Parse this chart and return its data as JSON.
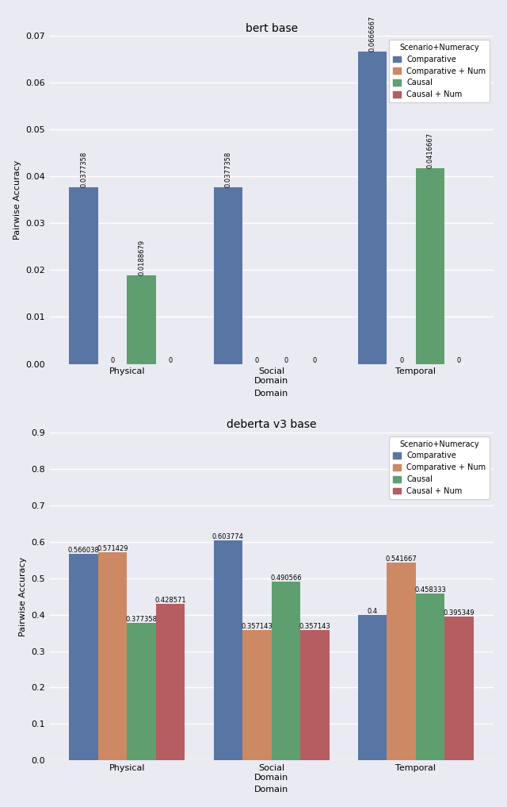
{
  "plot1": {
    "title": "bert base",
    "xlabel": "Domain",
    "ylabel": "Pairwise Accuracy",
    "categories": [
      "Physical",
      "Social\nDomain",
      "Temporal"
    ],
    "series": {
      "Comparative": [
        0.0377358,
        0.0377358,
        0.0666667
      ],
      "Comparative + Num": [
        0,
        0,
        0
      ],
      "Causal": [
        0.0188679,
        0,
        0.0416667
      ],
      "Causal + Num": [
        0,
        0,
        0
      ]
    },
    "ylim": [
      0,
      0.07
    ],
    "yticks": [
      0.0,
      0.01,
      0.02,
      0.03,
      0.04,
      0.05,
      0.06,
      0.07
    ]
  },
  "plot2": {
    "title": "deberta v3 base",
    "xlabel": "Domain",
    "ylabel": "Pairwise Accuracy",
    "categories": [
      "Physical",
      "Social\nDomain",
      "Temporal"
    ],
    "series": {
      "Comparative": [
        0.566038,
        0.603774,
        0.4
      ],
      "Comparative + Num": [
        0.571429,
        0.357143,
        0.541667
      ],
      "Causal": [
        0.377358,
        0.490566,
        0.458333
      ],
      "Causal + Num": [
        0.428571,
        0.357143,
        0.395349
      ]
    },
    "ylim": [
      0,
      0.9
    ],
    "yticks": [
      0.0,
      0.1,
      0.2,
      0.3,
      0.4,
      0.5,
      0.6,
      0.7,
      0.8,
      0.9
    ]
  },
  "colors": {
    "Comparative": "#5975a4",
    "Comparative + Num": "#cc8963",
    "Causal": "#5f9e6e",
    "Causal + Num": "#b55d60"
  },
  "legend_title": "Scenario+Numeracy",
  "bar_width": 0.2,
  "background_color": "#eaeaf2",
  "grid_color": "#ffffff",
  "font_size": 8,
  "label_font_size": 6.0,
  "title_fontsize": 10
}
